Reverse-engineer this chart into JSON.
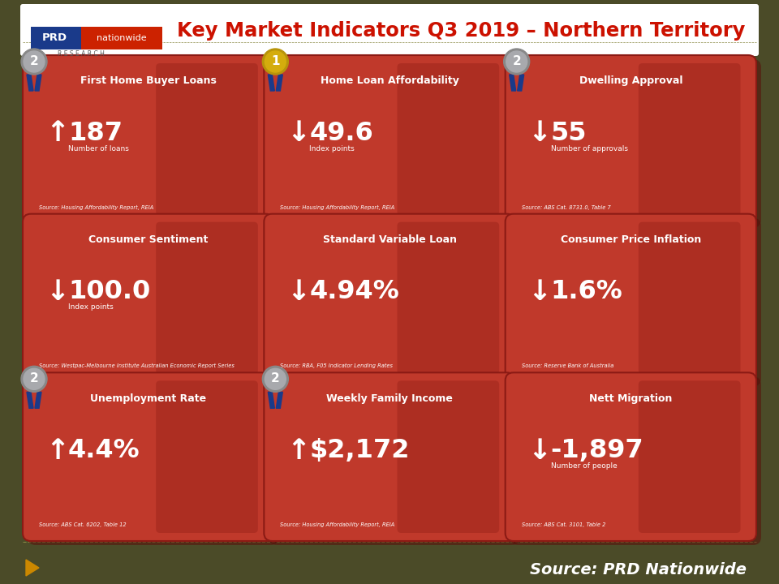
{
  "title": "Key Market Indicators Q3 2019 – Northern Territory",
  "bg_color": "#4b4b28",
  "card_red": "#c0392b",
  "card_dark_red": "#8b1a14",
  "white": "#ffffff",
  "footer_text": "Source: PRD Nationwide",
  "prd_blue": "#1a3a8a",
  "prd_red": "#cc2200",
  "title_red": "#cc1100",
  "gold": "#d4ac0d",
  "gold_outer": "#b8940a",
  "silver": "#a8a9ad",
  "silver_outer": "#888888",
  "ribbon_blue": "#1a3a8a",
  "footer_bg": "#3a3a18",
  "dashed_line_color": "#888844",
  "cards": [
    {
      "title": "First Home Buyer Loans",
      "value": "187",
      "unit": "Number of loans",
      "arrow": "up",
      "source": "Source: Housing Affordability Report, REIA",
      "medal": "silver",
      "row": 0,
      "col": 0
    },
    {
      "title": "Home Loan Affordability",
      "value": "49.6",
      "unit": "Index points",
      "arrow": "down",
      "source": "Source: Housing Affordability Report, REIA",
      "medal": "gold",
      "row": 0,
      "col": 1
    },
    {
      "title": "Dwelling Approval",
      "value": "55",
      "unit": "Number of approvals",
      "arrow": "down",
      "source": "Source: ABS Cat. 8731.0, Table 7",
      "medal": "silver",
      "row": 0,
      "col": 2
    },
    {
      "title": "Consumer Sentiment",
      "value": "100.0",
      "unit": "Index points",
      "arrow": "down",
      "source": "Source: Westpac-Melbourne Institute Australian Economic Report Series",
      "medal": null,
      "row": 1,
      "col": 0
    },
    {
      "title": "Standard Variable Loan",
      "value": "4.94%",
      "unit": "",
      "arrow": "down",
      "source": "Source: RBA, F05 Indicator Lending Rates",
      "medal": null,
      "row": 1,
      "col": 1
    },
    {
      "title": "Consumer Price Inflation",
      "value": "1.6%",
      "unit": "",
      "arrow": "down",
      "source": "Source: Reserve Bank of Australia",
      "medal": null,
      "row": 1,
      "col": 2
    },
    {
      "title": "Unemployment Rate",
      "value": "4.4%",
      "unit": "",
      "arrow": "up",
      "source": "Source: ABS Cat. 6202, Table 12",
      "medal": "silver",
      "row": 2,
      "col": 0
    },
    {
      "title": "Weekly Family Income",
      "value": "$2,172",
      "unit": "",
      "arrow": "up",
      "source": "Source: Housing Affordability Report, REIA",
      "medal": "silver",
      "row": 2,
      "col": 1
    },
    {
      "title": "Nett Migration",
      "value": "-1,897",
      "unit": "Number of people",
      "arrow": "down",
      "source": "Source: ABS Cat. 3101, Table 2",
      "medal": null,
      "row": 2,
      "col": 2
    }
  ]
}
